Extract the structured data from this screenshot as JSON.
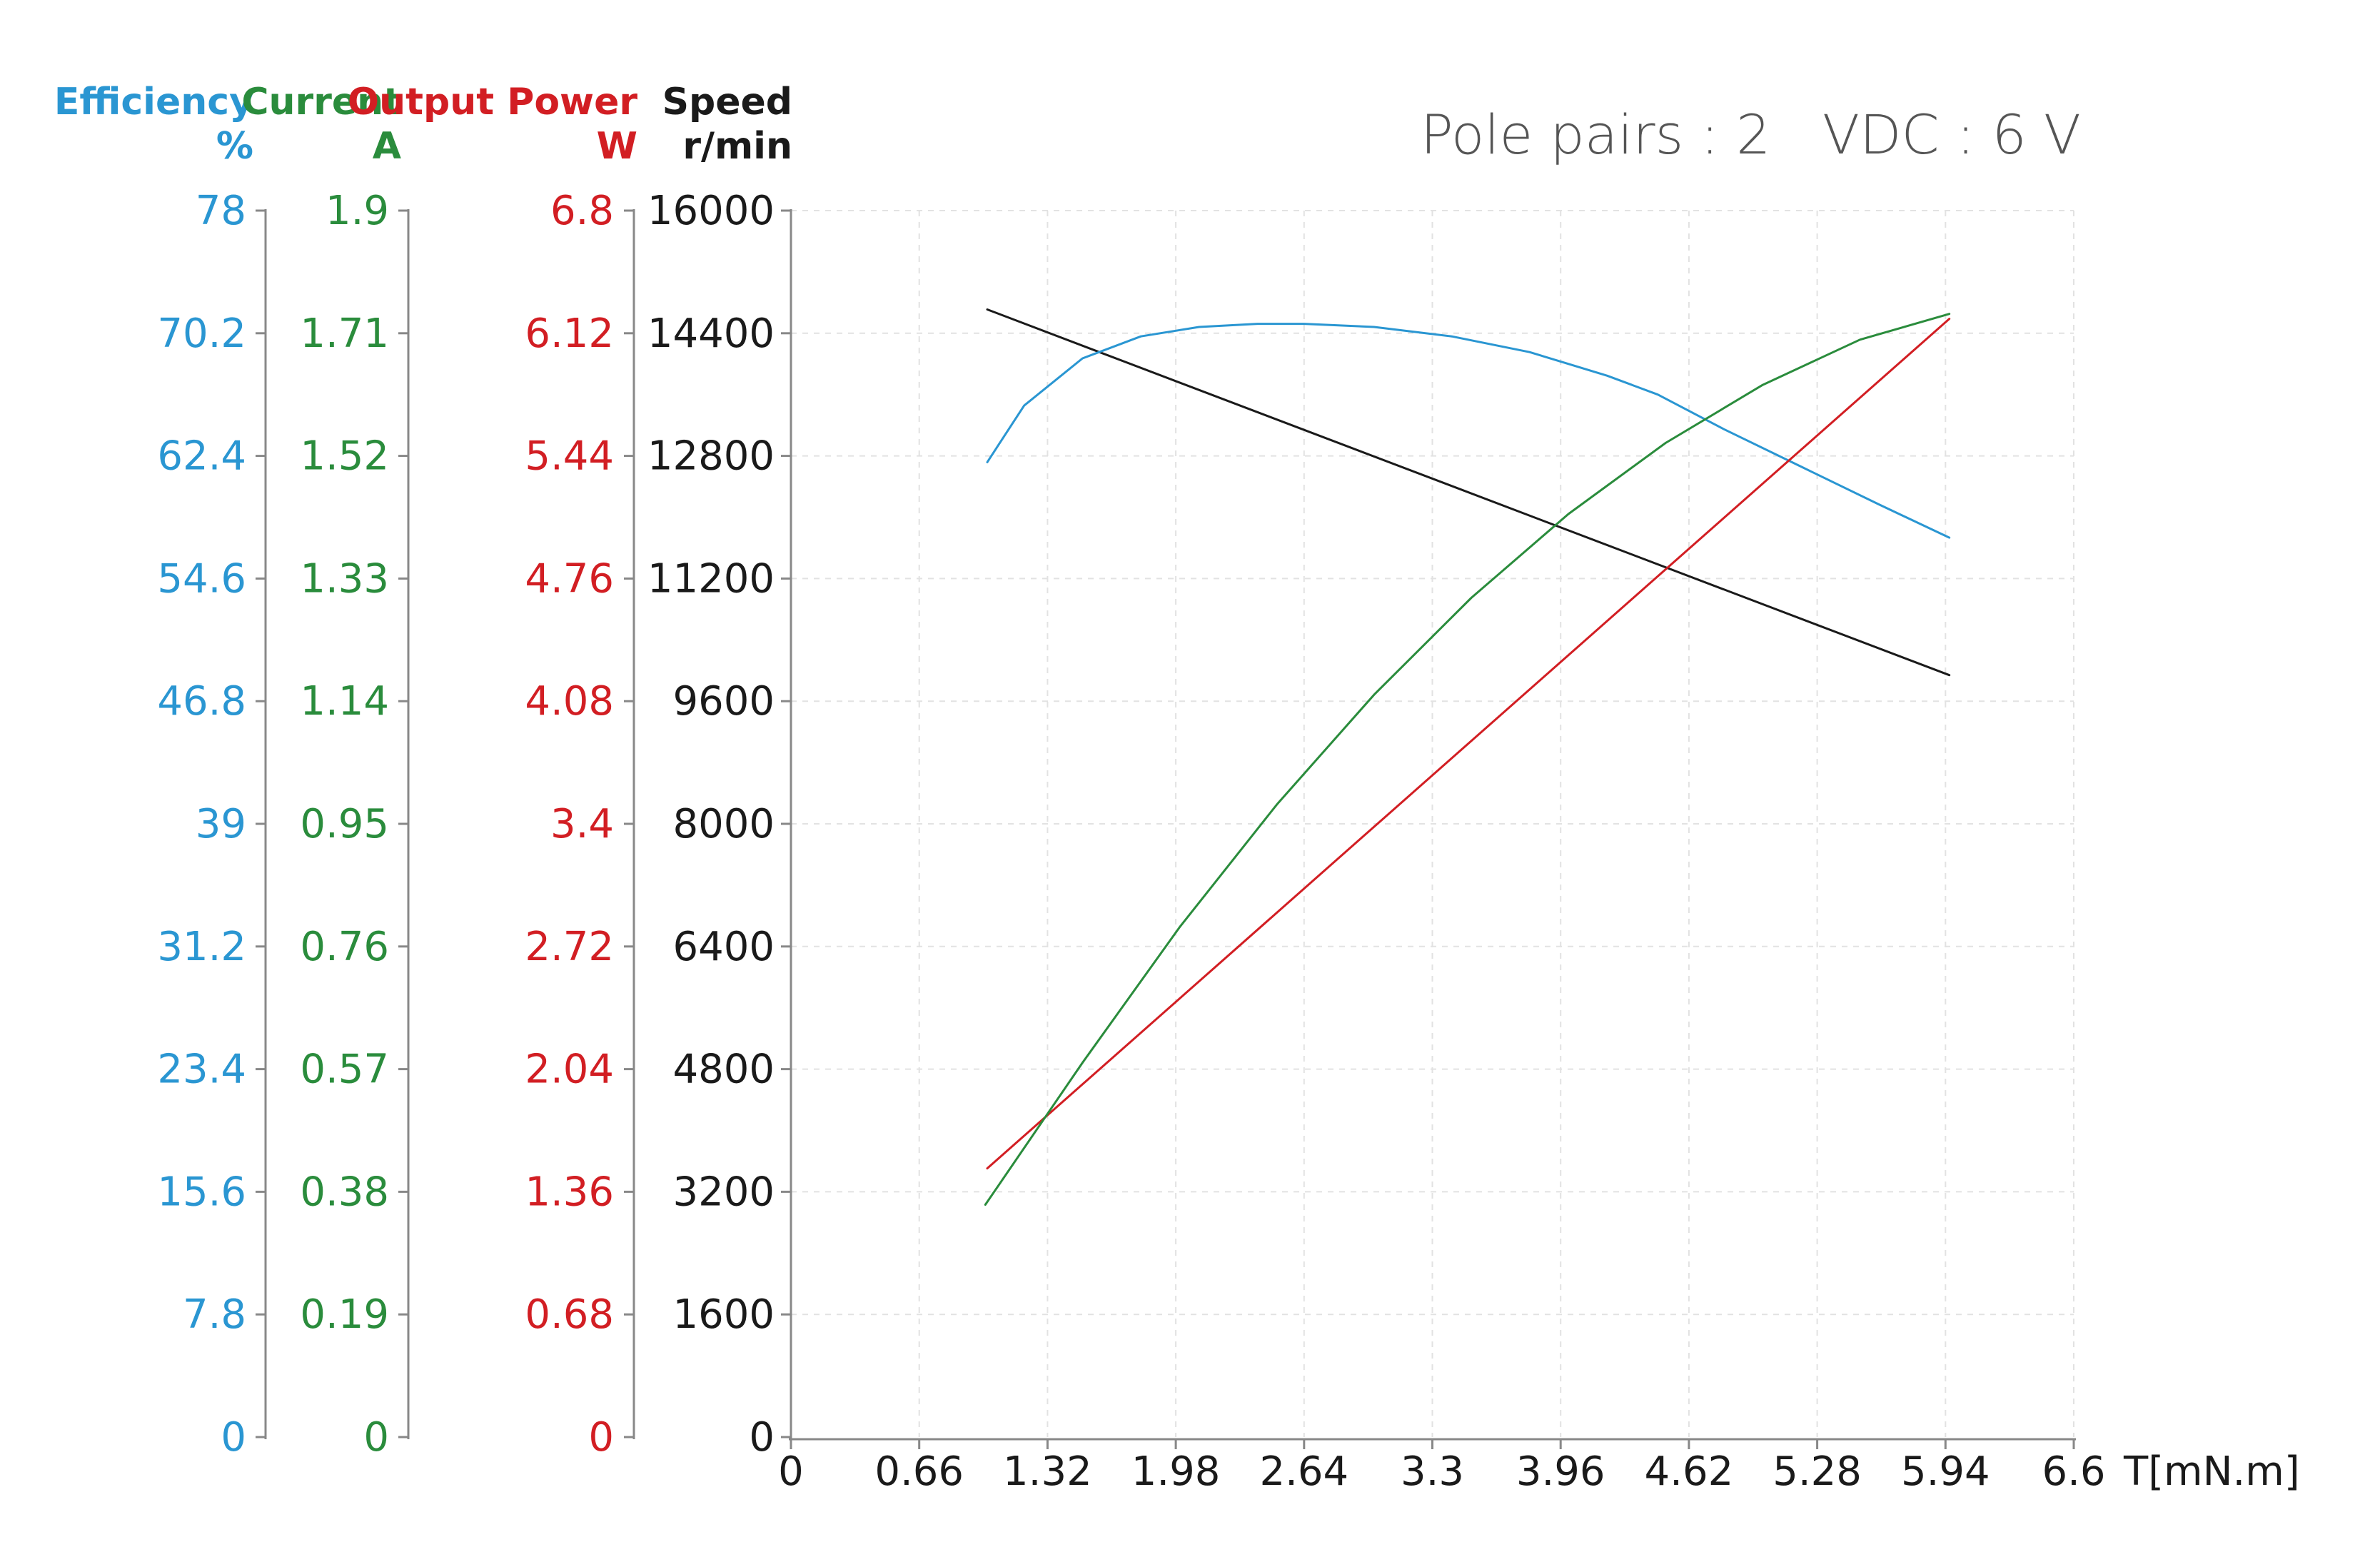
{
  "chart_data": {
    "type": "line",
    "title": "Pole pairs : 2   VDC : 6 V",
    "xlabel": "T[mN.m]",
    "xlim": [
      0,
      6.6
    ],
    "x_ticks": [
      "0",
      "0.66",
      "1.32",
      "1.98",
      "2.64",
      "3.3",
      "3.96",
      "4.62",
      "5.28",
      "5.94",
      "6.6"
    ],
    "grid": true,
    "colors": {
      "efficiency": "#2a96d2",
      "current": "#2a8c3c",
      "power": "#d21e23",
      "speed": "#1a1a1a",
      "axis": "#888888",
      "grid": "#e2e2e2"
    },
    "axes": [
      {
        "key": "efficiency",
        "name": "Efficiency",
        "unit": "%",
        "ylim": [
          0,
          78
        ],
        "ticks": [
          "0",
          "7.8",
          "15.6",
          "23.4",
          "31.2",
          "39",
          "46.8",
          "54.6",
          "62.4",
          "70.2",
          "78"
        ]
      },
      {
        "key": "current",
        "name": "Current",
        "unit": "A",
        "ylim": [
          0,
          1.9
        ],
        "ticks": [
          "0",
          "0.19",
          "0.38",
          "0.57",
          "0.76",
          "0.95",
          "1.14",
          "1.33",
          "1.52",
          "1.71",
          "1.9"
        ]
      },
      {
        "key": "power",
        "name": "Output Power",
        "unit": "W",
        "ylim": [
          0,
          6.8
        ],
        "ticks": [
          "0",
          "0.68",
          "1.36",
          "2.04",
          "2.72",
          "3.4",
          "4.08",
          "4.76",
          "5.44",
          "6.12",
          "6.8"
        ]
      },
      {
        "key": "speed",
        "name": "Speed",
        "unit": "r/min",
        "ylim": [
          0,
          16000
        ],
        "ticks": [
          "0",
          "1600",
          "3200",
          "4800",
          "6400",
          "8000",
          "9600",
          "11200",
          "12800",
          "14400",
          "16000"
        ]
      }
    ],
    "series": [
      {
        "name": "Speed",
        "axis": "speed",
        "x": [
          1.01,
          5.96
        ],
        "y": [
          14710,
          9940
        ]
      },
      {
        "name": "Efficiency",
        "axis": "efficiency",
        "x": [
          1.01,
          1.2,
          1.5,
          1.8,
          2.1,
          2.4,
          2.64,
          3.0,
          3.4,
          3.8,
          4.2,
          4.46,
          4.8,
          5.2,
          5.6,
          5.96
        ],
        "y": [
          62.0,
          65.6,
          68.6,
          70.0,
          70.6,
          70.8,
          70.8,
          70.6,
          70.0,
          69.0,
          67.5,
          66.3,
          64.1,
          61.7,
          59.3,
          57.2
        ]
      },
      {
        "name": "Output Power",
        "axis": "power",
        "x": [
          1.01,
          5.96
        ],
        "y": [
          1.49,
          6.2
        ]
      },
      {
        "name": "Current",
        "axis": "current",
        "x": [
          1.0,
          1.5,
          2.0,
          2.5,
          3.0,
          3.5,
          4.0,
          4.5,
          5.0,
          5.5,
          5.96
        ],
        "y": [
          0.36,
          0.58,
          0.79,
          0.98,
          1.15,
          1.3,
          1.43,
          1.54,
          1.63,
          1.7,
          1.74
        ]
      }
    ]
  }
}
